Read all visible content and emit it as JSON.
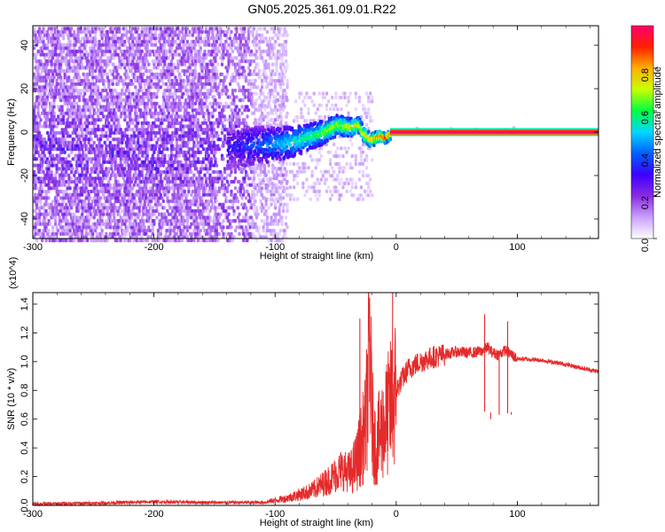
{
  "figure_title": "GN05.2025.361.09.01.R22",
  "chart_data": [
    {
      "type": "heatmap",
      "name": "spectrogram",
      "xlabel": "Height of straight line (km)",
      "ylabel": "Frequency (Hz)",
      "xlim": [
        -300,
        167
      ],
      "ylim": [
        -49,
        49
      ],
      "x_ticks": [
        -300,
        -200,
        -100,
        0,
        100
      ],
      "y_ticks": [
        -40,
        -20,
        0,
        20,
        40
      ],
      "colorbar": {
        "label": "Normalized spectral amplitude",
        "range": [
          0,
          1
        ],
        "ticks": [
          "0.0",
          "0.2",
          "0.4",
          "0.6",
          "0.8"
        ],
        "tick_values": [
          0.0,
          0.2,
          0.4,
          0.6,
          0.8
        ],
        "colors": [
          "#ffffff",
          "#c9a0ff",
          "#8a2be2",
          "#3d00ff",
          "#0060ff",
          "#00d8ff",
          "#00ff40",
          "#c8ff00",
          "#ffb000",
          "#ff2000",
          "#ff0070"
        ]
      },
      "signal_line": {
        "frequency_hz": 0,
        "x_range": [
          -5,
          167
        ],
        "amplitude": 1.0
      },
      "scatter_noise": {
        "x_range": [
          -300,
          -100
        ],
        "typical_amplitude": 0.15
      },
      "transition_path": [
        {
          "x": -140,
          "y": -6
        },
        {
          "x": -110,
          "y": -5
        },
        {
          "x": -90,
          "y": -4
        },
        {
          "x": -75,
          "y": -2
        },
        {
          "x": -60,
          "y": 1
        },
        {
          "x": -50,
          "y": 4
        },
        {
          "x": -40,
          "y": 3
        },
        {
          "x": -32,
          "y": 4
        },
        {
          "x": -28,
          "y": 0
        },
        {
          "x": -22,
          "y": -3
        },
        {
          "x": -15,
          "y": -1
        },
        {
          "x": -10,
          "y": -2
        },
        {
          "x": -5,
          "y": 0
        }
      ]
    },
    {
      "type": "line",
      "name": "snr",
      "xlabel": "Height of straight line (km)",
      "ylabel": "SNR (10 * v/v)",
      "y_multiplier_label": "(x10^4)",
      "xlim": [
        -300,
        167
      ],
      "ylim": [
        0,
        1.48
      ],
      "x_ticks": [
        -300,
        -200,
        -100,
        0,
        100
      ],
      "y_ticks": [
        0.0,
        0.2,
        0.4,
        0.6,
        0.8,
        1.0,
        1.2,
        1.4
      ],
      "y_tick_labels": [
        "0.0",
        "0.2",
        "0.4",
        "0.6",
        "0.8",
        "1.0",
        "1.2",
        "1.4"
      ],
      "series": [
        {
          "name": "SNR",
          "color": "#e52a2a",
          "x": [
            -300,
            -250,
            -200,
            -150,
            -110,
            -90,
            -70,
            -55,
            -45,
            -38,
            -33,
            -28,
            -25,
            -22,
            -20,
            -17,
            -13,
            -8,
            -4,
            0,
            5,
            10,
            20,
            30,
            40,
            50,
            60,
            70,
            75,
            80,
            85,
            90,
            95,
            100,
            120,
            140,
            167
          ],
          "y": [
            0.01,
            0.015,
            0.025,
            0.02,
            0.02,
            0.05,
            0.1,
            0.18,
            0.25,
            0.22,
            0.3,
            0.45,
            0.55,
            1.2,
            0.6,
            0.4,
            0.5,
            0.6,
            0.7,
            0.8,
            0.88,
            0.95,
            1.0,
            1.03,
            1.05,
            1.07,
            1.06,
            1.07,
            1.1,
            1.06,
            1.05,
            1.08,
            1.05,
            1.02,
            1.01,
            0.98,
            0.93
          ]
        }
      ],
      "spikes": [
        {
          "x": -30,
          "y": 1.3
        },
        {
          "x": -22,
          "y": 1.32
        },
        {
          "x": -18,
          "y": 0.55
        },
        {
          "x": -3,
          "y": 1.48
        },
        {
          "x": 73,
          "y": 1.33
        },
        {
          "x": 78,
          "y": 0.6
        },
        {
          "x": 85,
          "y": 1.05
        },
        {
          "x": 92,
          "y": 1.28
        },
        {
          "x": 95,
          "y": 0.65
        }
      ]
    }
  ]
}
